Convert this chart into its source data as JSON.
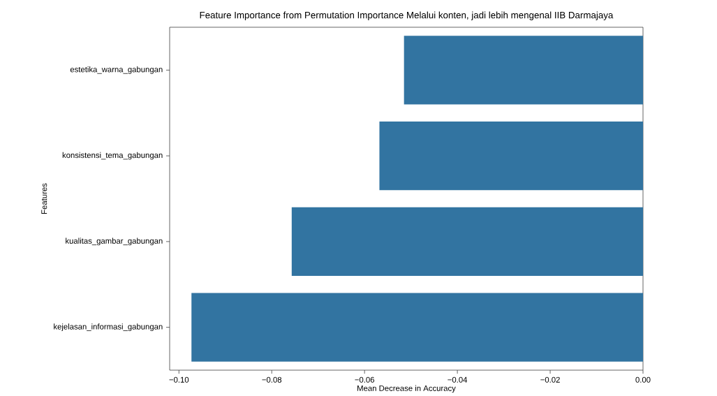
{
  "chart_data": {
    "type": "bar",
    "orientation": "horizontal",
    "title": "Feature Importance from Permutation Importance Melalui konten, jadi lebih mengenal IIB Darmajaya",
    "xlabel": "Mean Decrease in Accuracy",
    "ylabel": "Features",
    "categories": [
      "estetika_warna_gabungan",
      "konsistensi_tema_gabungan",
      "kualitas_gambar_gabungan",
      "kejelasan_informasi_gabungan"
    ],
    "values": [
      -0.0515,
      -0.0568,
      -0.0757,
      -0.0973
    ],
    "color": "#3274a1",
    "xlim": [
      -0.102,
      0
    ],
    "xticks": [
      {
        "value": -0.1,
        "label": "−0.10"
      },
      {
        "value": -0.08,
        "label": "−0.08"
      },
      {
        "value": -0.06,
        "label": "−0.06"
      },
      {
        "value": -0.04,
        "label": "−0.04"
      },
      {
        "value": -0.02,
        "label": "−0.02"
      },
      {
        "value": 0,
        "label": "0.00"
      }
    ],
    "grid": false
  }
}
